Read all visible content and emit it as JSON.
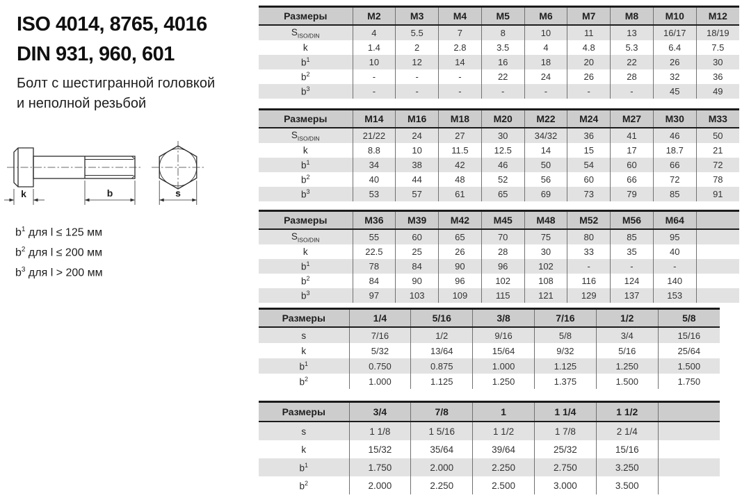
{
  "colors": {
    "table-top-border": "#1b1b1b",
    "header-bg": "#cdcdcd",
    "shade-bg": "#e2e2e2",
    "grid-line": "#707070"
  },
  "header": {
    "title_line1": "ISO 4014, 8765, 4016",
    "title_line2": "DIN 931, 960, 601",
    "subtitle_line1": "Болт с шестигранной головкой",
    "subtitle_line2": "и неполной резьбой"
  },
  "drawing": {
    "dim_k": "k",
    "dim_b": "b",
    "dim_s": "s"
  },
  "footnotes": [
    {
      "base": "b",
      "sup": "1",
      "rest": " для l ≤ 125 мм"
    },
    {
      "base": "b",
      "sup": "2",
      "rest": " для l ≤ 200 мм"
    },
    {
      "base": "b",
      "sup": "3",
      "rest": " для l > 200 мм"
    }
  ],
  "tables": [
    {
      "kind": "metric",
      "trailing_empty": false,
      "header_cells": [
        "Размеры",
        "M2",
        "M3",
        "M4",
        "M5",
        "M6",
        "M7",
        "M8",
        "M10",
        "M12"
      ],
      "rows": [
        {
          "label": {
            "base": "S",
            "sub": "ISO/DIN"
          },
          "values": [
            "4",
            "5.5",
            "7",
            "8",
            "10",
            "11",
            "13",
            "16/17",
            "18/19"
          ]
        },
        {
          "label": {
            "base": "k"
          },
          "values": [
            "1.4",
            "2",
            "2.8",
            "3.5",
            "4",
            "4.8",
            "5.3",
            "6.4",
            "7.5"
          ]
        },
        {
          "label": {
            "base": "b",
            "sup": "1"
          },
          "values": [
            "10",
            "12",
            "14",
            "16",
            "18",
            "20",
            "22",
            "26",
            "30"
          ]
        },
        {
          "label": {
            "base": "b",
            "sup": "2"
          },
          "values": [
            "-",
            "-",
            "-",
            "22",
            "24",
            "26",
            "28",
            "32",
            "36"
          ]
        },
        {
          "label": {
            "base": "b",
            "sup": "3"
          },
          "values": [
            "-",
            "-",
            "-",
            "-",
            "-",
            "-",
            "-",
            "45",
            "49"
          ]
        }
      ]
    },
    {
      "kind": "metric",
      "trailing_empty": false,
      "header_cells": [
        "Размеры",
        "M14",
        "M16",
        "M18",
        "M20",
        "M22",
        "M24",
        "M27",
        "M30",
        "M33"
      ],
      "rows": [
        {
          "label": {
            "base": "S",
            "sub": "ISO/DIN"
          },
          "values": [
            "21/22",
            "24",
            "27",
            "30",
            "34/32",
            "36",
            "41",
            "46",
            "50"
          ]
        },
        {
          "label": {
            "base": "k"
          },
          "values": [
            "8.8",
            "10",
            "11.5",
            "12.5",
            "14",
            "15",
            "17",
            "18.7",
            "21"
          ]
        },
        {
          "label": {
            "base": "b",
            "sup": "1"
          },
          "values": [
            "34",
            "38",
            "42",
            "46",
            "50",
            "54",
            "60",
            "66",
            "72"
          ]
        },
        {
          "label": {
            "base": "b",
            "sup": "2"
          },
          "values": [
            "40",
            "44",
            "48",
            "52",
            "56",
            "60",
            "66",
            "72",
            "78"
          ]
        },
        {
          "label": {
            "base": "b",
            "sup": "3"
          },
          "values": [
            "53",
            "57",
            "61",
            "65",
            "69",
            "73",
            "79",
            "85",
            "91"
          ]
        }
      ]
    },
    {
      "kind": "metric",
      "trailing_empty": true,
      "header_cells": [
        "Размеры",
        "M36",
        "M39",
        "M42",
        "M45",
        "M48",
        "M52",
        "M56",
        "M64"
      ],
      "rows": [
        {
          "label": {
            "base": "S",
            "sub": "ISO/DIN"
          },
          "values": [
            "55",
            "60",
            "65",
            "70",
            "75",
            "80",
            "85",
            "95"
          ]
        },
        {
          "label": {
            "base": "k"
          },
          "values": [
            "22.5",
            "25",
            "26",
            "28",
            "30",
            "33",
            "35",
            "40"
          ]
        },
        {
          "label": {
            "base": "b",
            "sup": "1"
          },
          "values": [
            "78",
            "84",
            "90",
            "96",
            "102",
            "-",
            "-",
            "-"
          ]
        },
        {
          "label": {
            "base": "b",
            "sup": "2"
          },
          "values": [
            "84",
            "90",
            "96",
            "102",
            "108",
            "116",
            "124",
            "140"
          ]
        },
        {
          "label": {
            "base": "b",
            "sup": "3"
          },
          "values": [
            "97",
            "103",
            "109",
            "115",
            "121",
            "129",
            "137",
            "153"
          ]
        }
      ]
    },
    {
      "kind": "imperial",
      "trailing_empty": false,
      "header_cells": [
        "Размеры",
        "1/4",
        "5/16",
        "3/8",
        "7/16",
        "1/2",
        "5/8"
      ],
      "rows": [
        {
          "label": {
            "base": "s"
          },
          "values": [
            "7/16",
            "1/2",
            "9/16",
            "5/8",
            "3/4",
            "15/16"
          ]
        },
        {
          "label": {
            "base": "k"
          },
          "values": [
            "5/32",
            "13/64",
            "15/64",
            "9/32",
            "5/16",
            "25/64"
          ]
        },
        {
          "label": {
            "base": "b",
            "sup": "1"
          },
          "values": [
            "0.750",
            "0.875",
            "1.000",
            "1.125",
            "1.250",
            "1.500"
          ]
        },
        {
          "label": {
            "base": "b",
            "sup": "2"
          },
          "values": [
            "1.000",
            "1.125",
            "1.250",
            "1.375",
            "1.500",
            "1.750"
          ]
        }
      ]
    },
    {
      "kind": "imperial",
      "trailing_empty": true,
      "header_cells": [
        "Размеры",
        "3/4",
        "7/8",
        "1",
        "1 1/4",
        "1 1/2"
      ],
      "rows": [
        {
          "label": {
            "base": "s"
          },
          "values": [
            "1 1/8",
            "1 5/16",
            "1 1/2",
            "1 7/8",
            "2 1/4"
          ]
        },
        {
          "label": {
            "base": "k"
          },
          "values": [
            "15/32",
            "35/64",
            "39/64",
            "25/32",
            "15/16"
          ]
        },
        {
          "label": {
            "base": "b",
            "sup": "1"
          },
          "values": [
            "1.750",
            "2.000",
            "2.250",
            "2.750",
            "3.250"
          ]
        },
        {
          "label": {
            "base": "b",
            "sup": "2"
          },
          "values": [
            "2.000",
            "2.250",
            "2.500",
            "3.000",
            "3.500"
          ]
        }
      ]
    }
  ]
}
